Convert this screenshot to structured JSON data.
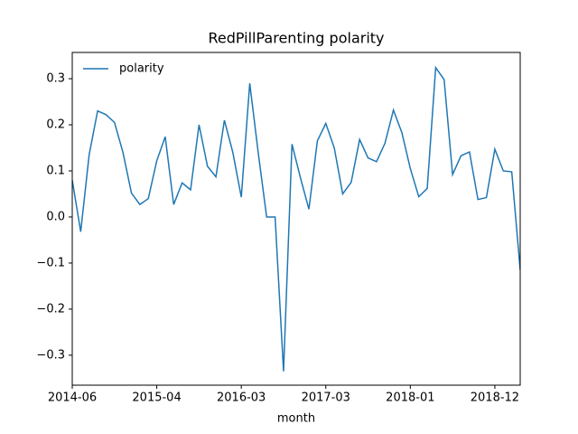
{
  "chart_data": {
    "type": "line",
    "title": "RedPillParenting polarity",
    "xlabel": "month",
    "categories": [
      "2014-06",
      null,
      null,
      null,
      null,
      null,
      null,
      null,
      null,
      null,
      "2015-04",
      null,
      null,
      null,
      null,
      null,
      null,
      null,
      null,
      null,
      "2016-03",
      null,
      null,
      null,
      null,
      null,
      null,
      null,
      null,
      null,
      "2017-03",
      null,
      null,
      null,
      null,
      null,
      null,
      null,
      null,
      null,
      "2018-01",
      null,
      null,
      null,
      null,
      null,
      null,
      null,
      null,
      null,
      "2018-12",
      null,
      null,
      null
    ],
    "series": [
      {
        "name": "polarity",
        "color": "#1f77b4",
        "values": [
          0.08,
          -0.032,
          0.135,
          0.23,
          0.222,
          0.205,
          0.14,
          0.052,
          0.027,
          0.04,
          0.122,
          0.174,
          0.027,
          0.074,
          0.059,
          0.2,
          0.11,
          0.087,
          0.21,
          0.14,
          0.043,
          0.29,
          0.14,
          0.0,
          0.0,
          -0.335,
          0.158,
          0.085,
          0.017,
          0.165,
          0.203,
          0.15,
          0.05,
          0.075,
          0.168,
          0.128,
          0.12,
          0.16,
          0.232,
          0.183,
          0.105,
          0.044,
          0.062,
          0.324,
          0.298,
          0.092,
          0.133,
          0.141,
          0.038,
          0.042,
          0.147,
          0.1,
          0.098,
          -0.115
        ]
      }
    ],
    "ylim": [
      -0.365,
      0.357
    ],
    "yticks": [
      {
        "value": -0.3,
        "label": "−0.3"
      },
      {
        "value": -0.2,
        "label": "−0.2"
      },
      {
        "value": -0.1,
        "label": "−0.1"
      },
      {
        "value": 0,
        "label": "0.0"
      },
      0.1,
      0.2,
      0.3
    ],
    "legend": "upper left"
  }
}
